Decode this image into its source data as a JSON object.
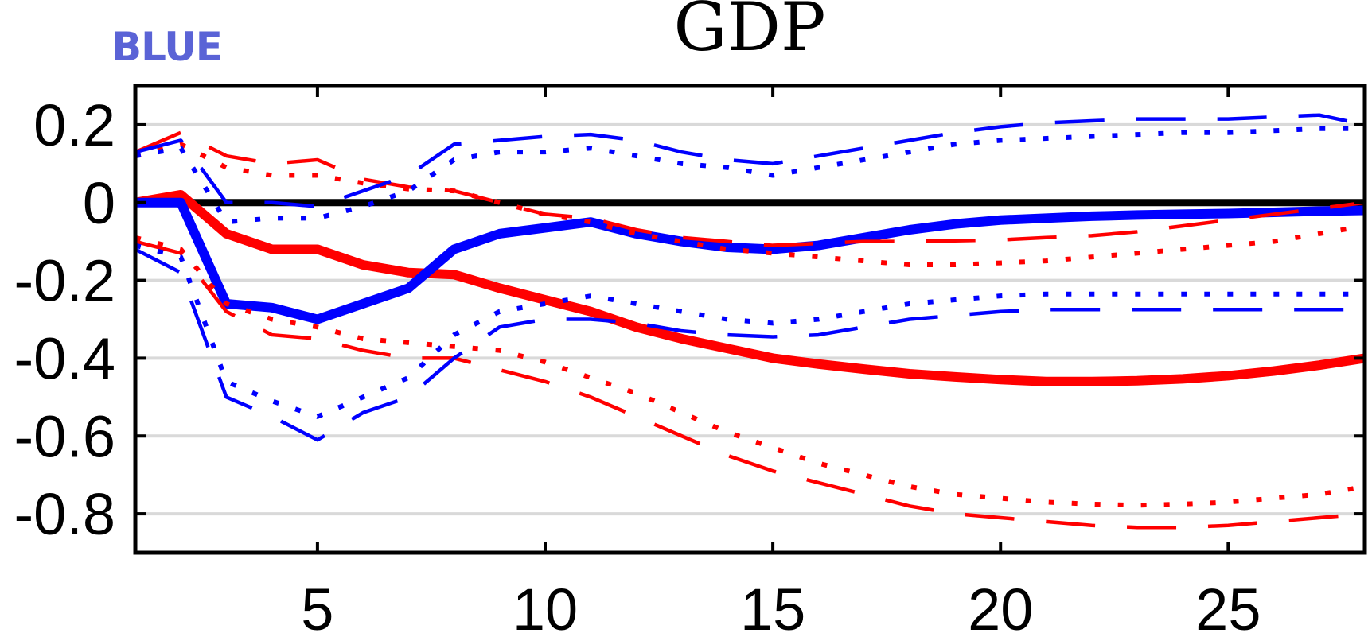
{
  "chart_data": {
    "type": "line",
    "title": "GDP",
    "corner_label": "BLUE",
    "xlabel": "",
    "ylabel": "",
    "xlim": [
      1,
      28
    ],
    "ylim": [
      -0.9,
      0.3
    ],
    "x_ticks": [
      5,
      10,
      15,
      20,
      25
    ],
    "y_ticks": [
      0.2,
      0,
      -0.2,
      -0.4,
      -0.6,
      -0.8
    ],
    "y_tick_labels": [
      "0.2",
      "0",
      "-0.2",
      "-0.4",
      "-0.6",
      "-0.8"
    ],
    "grid": "horizontal",
    "zero_line": true,
    "x": [
      1,
      2,
      3,
      4,
      5,
      6,
      7,
      8,
      9,
      10,
      11,
      12,
      13,
      14,
      15,
      16,
      17,
      18,
      19,
      20,
      21,
      22,
      23,
      24,
      25,
      26,
      27,
      28
    ],
    "series": [
      {
        "color": "#ff0000",
        "style": "solid",
        "weight": "thick",
        "values": [
          0.0,
          0.02,
          -0.08,
          -0.12,
          -0.12,
          -0.16,
          -0.18,
          -0.185,
          -0.22,
          -0.25,
          -0.28,
          -0.32,
          -0.35,
          -0.375,
          -0.4,
          -0.415,
          -0.428,
          -0.44,
          -0.448,
          -0.455,
          -0.46,
          -0.46,
          -0.458,
          -0.453,
          -0.445,
          -0.433,
          -0.418,
          -0.4
        ]
      },
      {
        "color": "#0000ff",
        "style": "solid",
        "weight": "thick",
        "values": [
          0.0,
          0.0,
          -0.26,
          -0.27,
          -0.3,
          -0.26,
          -0.22,
          -0.12,
          -0.08,
          -0.065,
          -0.05,
          -0.08,
          -0.1,
          -0.115,
          -0.12,
          -0.11,
          -0.09,
          -0.07,
          -0.055,
          -0.045,
          -0.04,
          -0.035,
          -0.032,
          -0.03,
          -0.028,
          -0.025,
          -0.022,
          -0.02
        ]
      },
      {
        "color": "#ff0000",
        "style": "dashed",
        "weight": "thin",
        "values": [
          0.13,
          0.18,
          0.12,
          0.1,
          0.11,
          0.06,
          0.04,
          0.03,
          0.0,
          -0.03,
          -0.04,
          -0.07,
          -0.09,
          -0.1,
          -0.11,
          -0.105,
          -0.1,
          -0.1,
          -0.098,
          -0.096,
          -0.09,
          -0.085,
          -0.075,
          -0.06,
          -0.045,
          -0.03,
          -0.015,
          0.0
        ]
      },
      {
        "color": "#ff0000",
        "style": "dashed",
        "weight": "thin",
        "values": [
          -0.1,
          -0.13,
          -0.28,
          -0.34,
          -0.35,
          -0.38,
          -0.4,
          -0.4,
          -0.43,
          -0.46,
          -0.5,
          -0.55,
          -0.6,
          -0.65,
          -0.69,
          -0.72,
          -0.75,
          -0.78,
          -0.8,
          -0.81,
          -0.82,
          -0.83,
          -0.835,
          -0.835,
          -0.83,
          -0.82,
          -0.81,
          -0.8
        ]
      },
      {
        "color": "#ff0000",
        "style": "dotted",
        "weight": "thin",
        "values": [
          0.12,
          0.15,
          0.09,
          0.07,
          0.07,
          0.05,
          0.035,
          0.03,
          0.0,
          -0.03,
          -0.05,
          -0.08,
          -0.1,
          -0.12,
          -0.13,
          -0.14,
          -0.15,
          -0.16,
          -0.16,
          -0.155,
          -0.15,
          -0.14,
          -0.13,
          -0.12,
          -0.11,
          -0.1,
          -0.08,
          -0.06
        ]
      },
      {
        "color": "#ff0000",
        "style": "dotted",
        "weight": "thin",
        "values": [
          -0.09,
          -0.12,
          -0.26,
          -0.3,
          -0.32,
          -0.35,
          -0.36,
          -0.37,
          -0.38,
          -0.41,
          -0.45,
          -0.49,
          -0.54,
          -0.59,
          -0.63,
          -0.67,
          -0.7,
          -0.73,
          -0.75,
          -0.76,
          -0.77,
          -0.775,
          -0.778,
          -0.775,
          -0.77,
          -0.76,
          -0.75,
          -0.73
        ]
      },
      {
        "color": "#0000ff",
        "style": "dashed",
        "weight": "thin",
        "values": [
          0.13,
          0.16,
          0.0,
          0.0,
          -0.01,
          0.03,
          0.07,
          0.15,
          0.16,
          0.17,
          0.175,
          0.16,
          0.13,
          0.11,
          0.1,
          0.12,
          0.14,
          0.16,
          0.18,
          0.195,
          0.205,
          0.21,
          0.215,
          0.215,
          0.215,
          0.22,
          0.225,
          0.2
        ]
      },
      {
        "color": "#0000ff",
        "style": "dashed",
        "weight": "thin",
        "values": [
          -0.12,
          -0.18,
          -0.5,
          -0.55,
          -0.61,
          -0.54,
          -0.5,
          -0.4,
          -0.32,
          -0.3,
          -0.3,
          -0.31,
          -0.33,
          -0.34,
          -0.345,
          -0.34,
          -0.32,
          -0.3,
          -0.29,
          -0.28,
          -0.275,
          -0.275,
          -0.275,
          -0.275,
          -0.275,
          -0.275,
          -0.275,
          -0.275
        ]
      },
      {
        "color": "#0000ff",
        "style": "dotted",
        "weight": "thin",
        "values": [
          0.12,
          0.14,
          -0.05,
          -0.04,
          -0.04,
          -0.01,
          0.03,
          0.11,
          0.13,
          0.13,
          0.14,
          0.12,
          0.1,
          0.09,
          0.07,
          0.09,
          0.11,
          0.13,
          0.15,
          0.16,
          0.165,
          0.17,
          0.175,
          0.18,
          0.18,
          0.185,
          0.19,
          0.19
        ]
      },
      {
        "color": "#0000ff",
        "style": "dotted",
        "weight": "thin",
        "values": [
          -0.11,
          -0.14,
          -0.46,
          -0.51,
          -0.55,
          -0.5,
          -0.45,
          -0.34,
          -0.28,
          -0.26,
          -0.24,
          -0.26,
          -0.28,
          -0.3,
          -0.31,
          -0.3,
          -0.28,
          -0.26,
          -0.25,
          -0.24,
          -0.235,
          -0.235,
          -0.235,
          -0.235,
          -0.235,
          -0.235,
          -0.235,
          -0.235
        ]
      }
    ]
  }
}
